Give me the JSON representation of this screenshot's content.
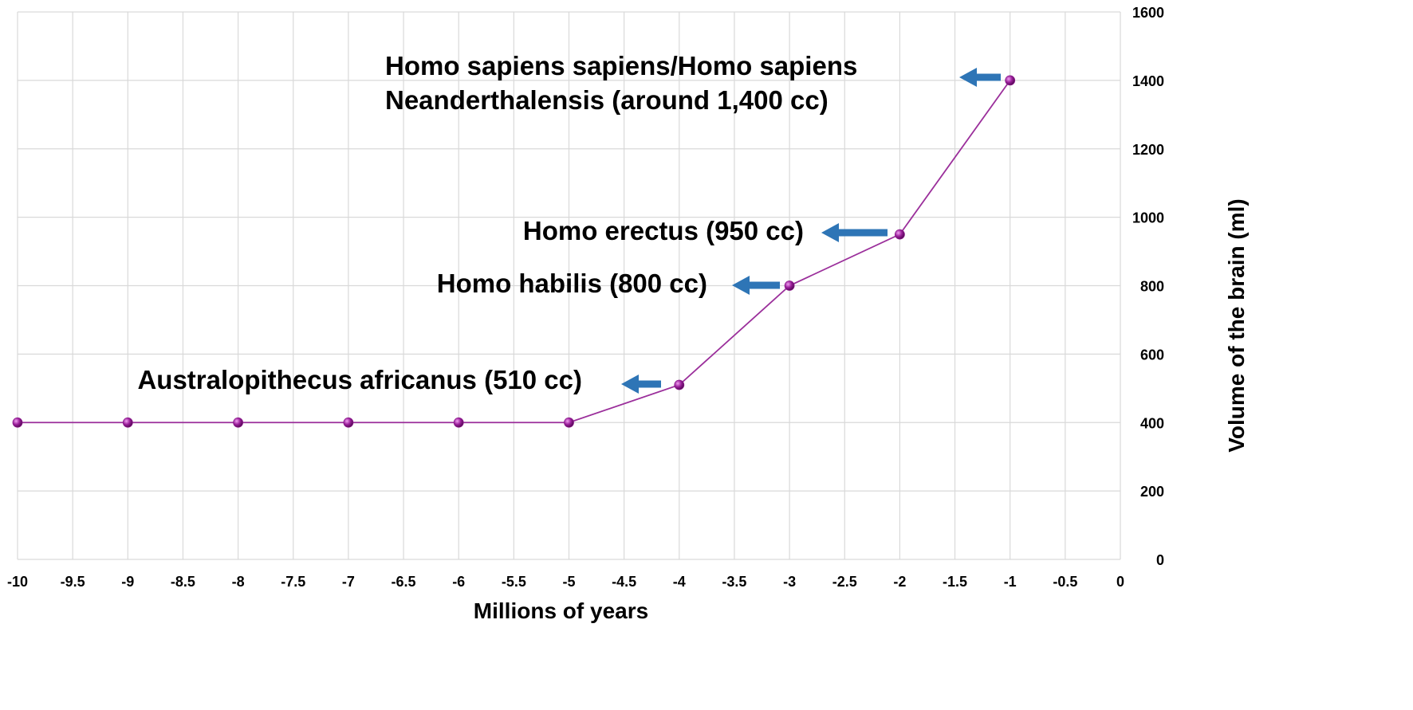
{
  "chart_data": {
    "type": "line",
    "xlabel": "Millions of years",
    "ylabel": "Volume of the brain (ml)",
    "xlim": [
      -10,
      0
    ],
    "ylim": [
      0,
      1600
    ],
    "x_ticks": [
      -10,
      -9.5,
      -9,
      -8.5,
      -8,
      -7.5,
      -7,
      -6.5,
      -6,
      -5.5,
      -5,
      -4.5,
      -4,
      -3.5,
      -3,
      -2.5,
      -2,
      -1.5,
      -1,
      -0.5,
      0
    ],
    "y_ticks": [
      0,
      200,
      400,
      600,
      800,
      1000,
      1200,
      1400,
      1600
    ],
    "y_axis_side": "right",
    "grid": true,
    "series": [
      {
        "x": [
          -10,
          -9,
          -8,
          -7,
          -6,
          -5,
          -4,
          -3,
          -2,
          -1
        ],
        "y": [
          400,
          400,
          400,
          400,
          400,
          400,
          510,
          800,
          950,
          1400
        ]
      }
    ],
    "annotations": [
      {
        "lines": [
          "Homo sapiens sapiens/Homo sapiens",
          "Neanderthalensis (around 1,400 cc)"
        ],
        "point": {
          "x": -1,
          "y": 1400
        }
      },
      {
        "lines": [
          "Homo erectus (950 cc)"
        ],
        "point": {
          "x": -2,
          "y": 950
        }
      },
      {
        "lines": [
          "Homo habilis  (800 cc)"
        ],
        "point": {
          "x": -3,
          "y": 800
        }
      },
      {
        "lines": [
          "Australopithecus africanus (510 cc)"
        ],
        "point": {
          "x": -4,
          "y": 510
        }
      }
    ]
  },
  "colors": {
    "line": "#9b2f9b",
    "marker": "#8b1a8b",
    "arrow": "#2e75b6",
    "grid": "#d9d9d9"
  }
}
